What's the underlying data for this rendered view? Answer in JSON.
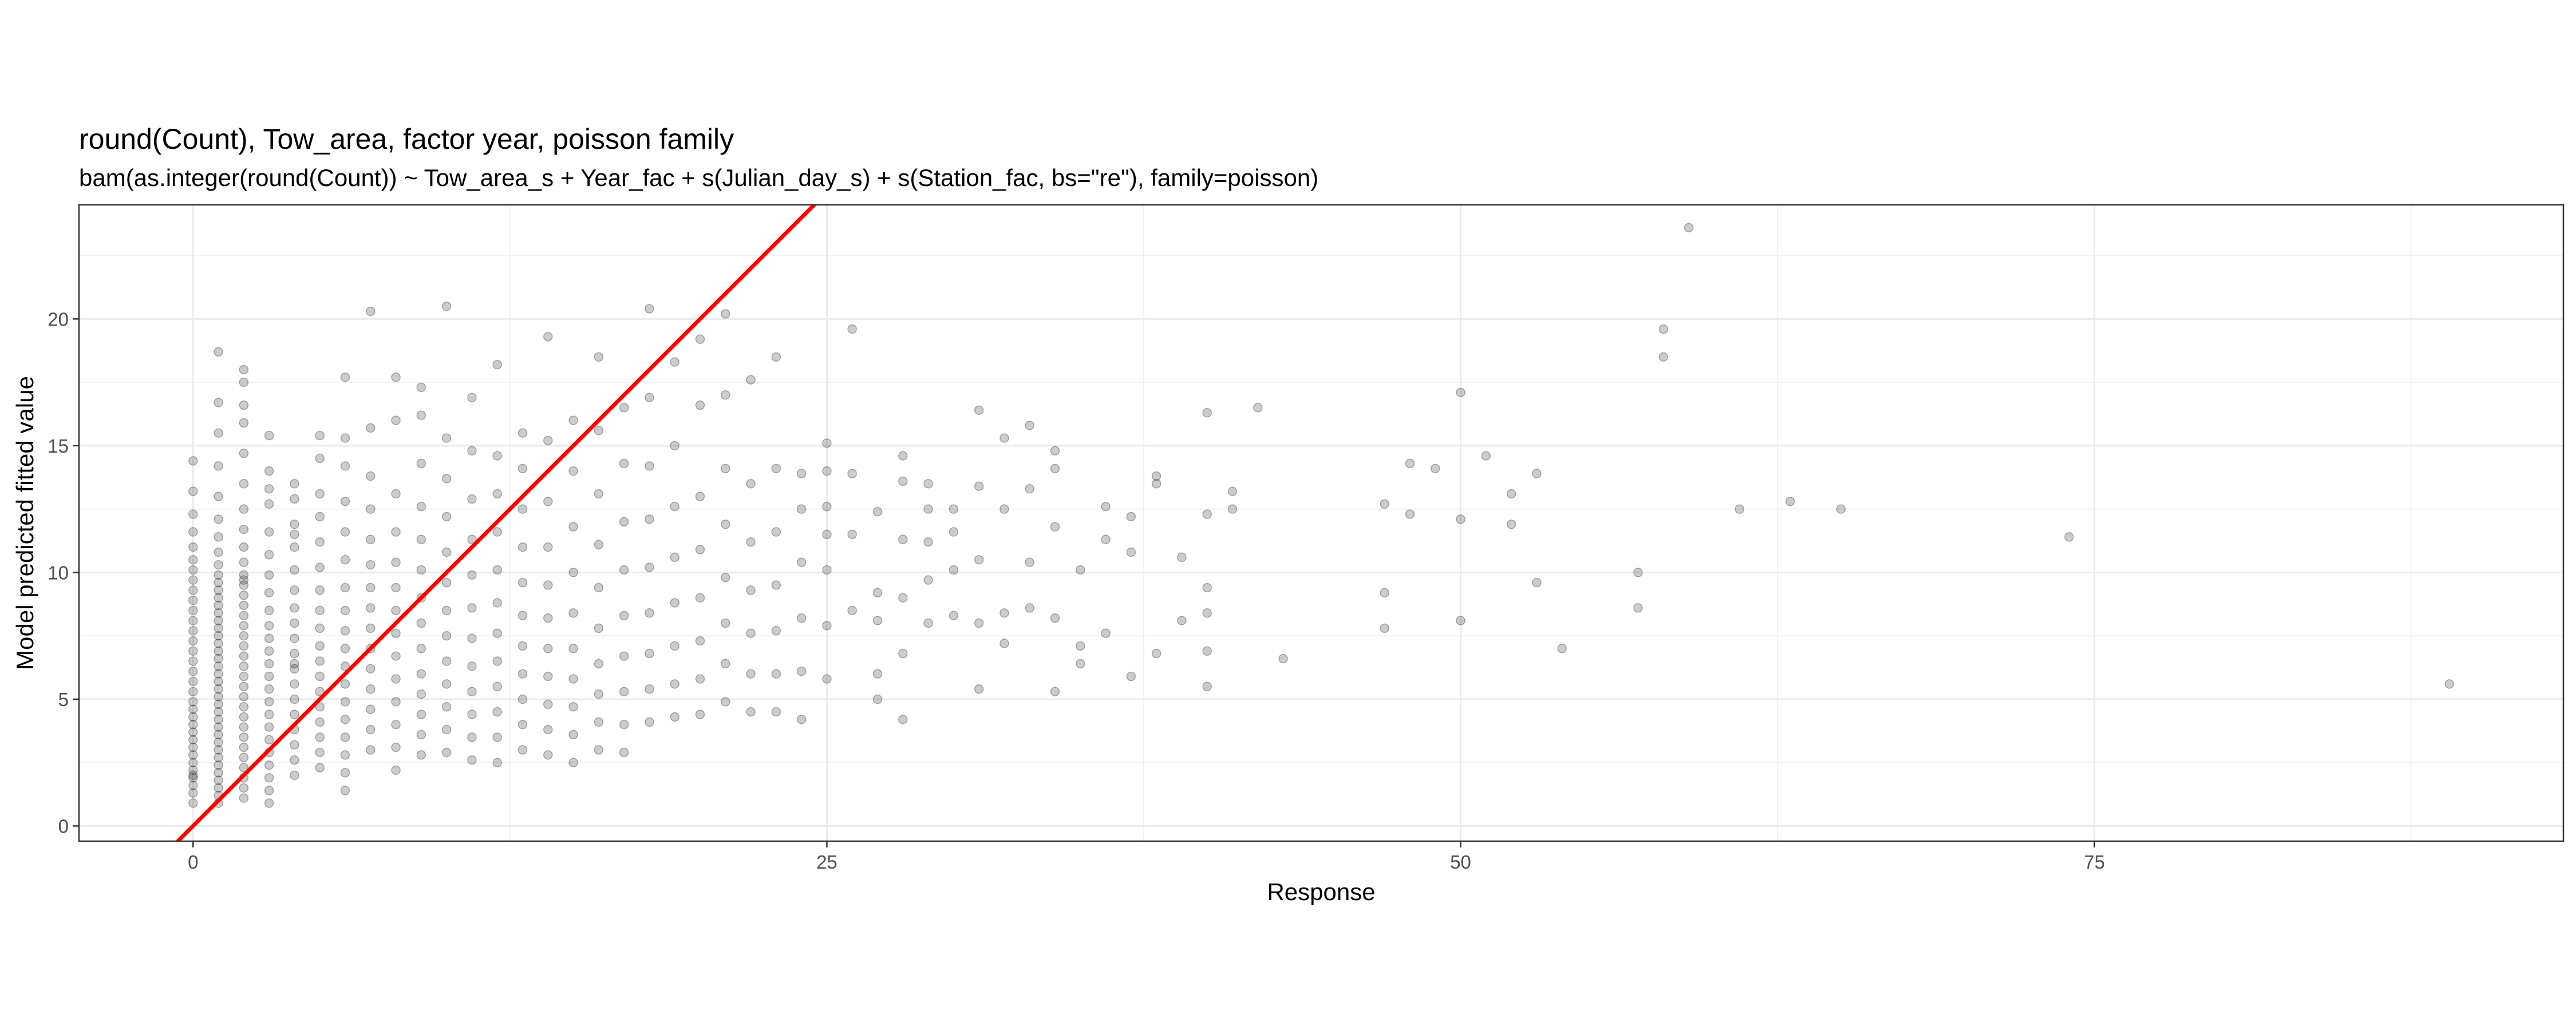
{
  "chart_data": {
    "type": "scatter",
    "title": "round(Count), Tow_area, factor year, poisson family",
    "subtitle": "bam(as.integer(round(Count)) ~ Tow_area_s + Year_fac + s(Julian_day_s) + s(Station_fac, bs=\"re\"), family=poisson)",
    "xlabel": "Response",
    "ylabel": "Model predicted fitted value",
    "xlim": [
      -4.5,
      93.5
    ],
    "ylim": [
      -0.6,
      24.5
    ],
    "x_ticks": [
      0,
      25,
      50,
      75
    ],
    "x_tick_labels": [
      "0",
      "25",
      "50",
      "75"
    ],
    "y_ticks": [
      0,
      5,
      10,
      15,
      20
    ],
    "y_tick_labels": [
      "0",
      "5",
      "10",
      "15",
      "20"
    ],
    "grid": true,
    "legend": "none",
    "reference_line": {
      "type": "identity",
      "slope": 1,
      "intercept": 0,
      "color": "#ff0000"
    },
    "point_color": "#000000",
    "point_opacity": 0.2,
    "series": [
      {
        "x": [
          0,
          0,
          0,
          0,
          0,
          0,
          0,
          0,
          0,
          0,
          0,
          0,
          0,
          0,
          0,
          0,
          0,
          0,
          0,
          0,
          0,
          0,
          0,
          0,
          0,
          0,
          0,
          0,
          0,
          0,
          0,
          0,
          0,
          0,
          1,
          1,
          1,
          1,
          1,
          1,
          1,
          1,
          1,
          1,
          1,
          1,
          1,
          1,
          1,
          1,
          1,
          1,
          1,
          1,
          1,
          1,
          1,
          1,
          1,
          1,
          1,
          1,
          1,
          1,
          1,
          1,
          1,
          1,
          1,
          1,
          1,
          1,
          1,
          1,
          2,
          2,
          2,
          2,
          2,
          2,
          2,
          2,
          2,
          2,
          2,
          2,
          2,
          2,
          2,
          2,
          2,
          2,
          2,
          2,
          2,
          2,
          2,
          2,
          2,
          2,
          2,
          2,
          2,
          2,
          2,
          2,
          2,
          2,
          3,
          3,
          3,
          3,
          3,
          3,
          3,
          3,
          3,
          3,
          3,
          3,
          3,
          3,
          3,
          3,
          3,
          3,
          3,
          3,
          3,
          3,
          3,
          3,
          4,
          4,
          4,
          4,
          4,
          4,
          4,
          4,
          4,
          4,
          4,
          4,
          4,
          4,
          4,
          4,
          4,
          4,
          4,
          4,
          5,
          5,
          5,
          5,
          5,
          5,
          5,
          5,
          5,
          5,
          5,
          5,
          5,
          5,
          5,
          5,
          5,
          5,
          6,
          6,
          6,
          6,
          6,
          6,
          6,
          6,
          6,
          6,
          6,
          6,
          6,
          6,
          6,
          6,
          6,
          6,
          7,
          7,
          7,
          7,
          7,
          7,
          7,
          7,
          7,
          7,
          7,
          7,
          7,
          7,
          7,
          8,
          8,
          8,
          8,
          8,
          8,
          8,
          8,
          8,
          8,
          8,
          8,
          8,
          8,
          9,
          9,
          9,
          9,
          9,
          9,
          9,
          9,
          9,
          9,
          9,
          9,
          9,
          9,
          10,
          10,
          10,
          10,
          10,
          10,
          10,
          10,
          10,
          10,
          10,
          10,
          10,
          11,
          11,
          11,
          11,
          11,
          11,
          11,
          11,
          11,
          11,
          11,
          11,
          12,
          12,
          12,
          12,
          12,
          12,
          12,
          12,
          12,
          12,
          12,
          12,
          13,
          13,
          13,
          13,
          13,
          13,
          13,
          13,
          13,
          13,
          13,
          14,
          14,
          14,
          14,
          14,
          14,
          14,
          14,
          14,
          14,
          14,
          15,
          15,
          15,
          15,
          15,
          15,
          15,
          15,
          15,
          15,
          16,
          16,
          16,
          16,
          16,
          16,
          16,
          16,
          16,
          16,
          17,
          17,
          17,
          17,
          17,
          17,
          17,
          17,
          17,
          18,
          18,
          18,
          18,
          18,
          18,
          18,
          18,
          18,
          19,
          19,
          19,
          19,
          19,
          19,
          19,
          19,
          20,
          20,
          20,
          20,
          20,
          20,
          20,
          20,
          21,
          21,
          21,
          21,
          21,
          21,
          21,
          21,
          22,
          22,
          22,
          22,
          22,
          22,
          22,
          23,
          23,
          23,
          23,
          23,
          23,
          23,
          24,
          24,
          24,
          24,
          24,
          24,
          25,
          25,
          25,
          25,
          25,
          25,
          25,
          26,
          26,
          26,
          26,
          27,
          27,
          27,
          27,
          27,
          28,
          28,
          28,
          28,
          28,
          28,
          29,
          29,
          29,
          29,
          29,
          30,
          30,
          30,
          30,
          31,
          31,
          31,
          31,
          31,
          32,
          32,
          32,
          32,
          33,
          33,
          33,
          33,
          34,
          34,
          34,
          34,
          34,
          35,
          35,
          35,
          36,
          36,
          36,
          37,
          37,
          37,
          38,
          38,
          38,
          39,
          39,
          40,
          40,
          40,
          40,
          40,
          40,
          41,
          41,
          42,
          43,
          47,
          47,
          47,
          48,
          48,
          49,
          50,
          50,
          50,
          51,
          52,
          52,
          53,
          53,
          54,
          57,
          57,
          58,
          58,
          59,
          61,
          63,
          65,
          74,
          89
        ],
        "y": [
          0.9,
          1.3,
          1.6,
          1.9,
          2.2,
          2.5,
          2.8,
          3.1,
          3.4,
          3.7,
          4.0,
          4.3,
          4.6,
          4.9,
          5.3,
          5.7,
          6.1,
          6.5,
          6.9,
          7.3,
          7.7,
          8.1,
          8.5,
          8.9,
          9.3,
          9.7,
          10.1,
          10.5,
          11.0,
          11.6,
          12.3,
          13.2,
          14.4,
          2.0,
          0.9,
          1.2,
          1.5,
          1.8,
          2.1,
          2.4,
          2.7,
          3.0,
          3.3,
          3.6,
          3.9,
          4.2,
          4.5,
          4.8,
          5.1,
          5.4,
          5.7,
          6.0,
          6.3,
          6.6,
          6.9,
          7.2,
          7.5,
          7.8,
          8.1,
          8.4,
          8.7,
          9.0,
          9.3,
          9.6,
          9.9,
          10.3,
          10.8,
          11.4,
          12.1,
          13.0,
          14.2,
          15.5,
          16.7,
          18.7,
          1.1,
          1.5,
          1.9,
          2.3,
          2.7,
          3.1,
          3.5,
          3.9,
          4.3,
          4.7,
          5.1,
          5.5,
          5.9,
          6.3,
          6.7,
          7.1,
          7.5,
          7.9,
          8.3,
          8.7,
          9.1,
          9.5,
          9.9,
          10.4,
          11.0,
          11.7,
          12.5,
          13.5,
          14.7,
          16.6,
          17.5,
          15.9,
          18.0,
          9.7,
          0.9,
          1.4,
          1.9,
          2.4,
          2.9,
          3.4,
          3.9,
          4.4,
          4.9,
          5.4,
          5.9,
          6.4,
          6.9,
          7.4,
          7.9,
          8.5,
          9.2,
          9.9,
          10.7,
          11.6,
          12.7,
          14.0,
          15.4,
          13.3,
          2.0,
          2.6,
          3.2,
          3.8,
          4.4,
          5.0,
          5.6,
          6.2,
          6.8,
          7.4,
          8.0,
          8.6,
          9.3,
          10.1,
          11.0,
          11.9,
          12.9,
          13.5,
          11.5,
          6.4,
          2.3,
          2.9,
          3.5,
          4.1,
          4.7,
          5.3,
          5.9,
          6.5,
          7.1,
          7.8,
          8.5,
          9.3,
          10.2,
          11.2,
          12.2,
          13.1,
          15.4,
          14.5,
          1.4,
          2.1,
          2.8,
          3.5,
          4.2,
          4.9,
          5.6,
          6.3,
          7.0,
          7.7,
          8.5,
          9.4,
          10.5,
          11.6,
          12.8,
          14.2,
          15.3,
          17.7,
          3.0,
          3.8,
          4.6,
          5.4,
          6.2,
          7.0,
          7.8,
          8.6,
          9.4,
          10.3,
          11.3,
          12.5,
          13.8,
          15.7,
          20.3,
          2.2,
          3.1,
          4.0,
          4.9,
          5.8,
          6.7,
          7.6,
          8.5,
          9.4,
          10.4,
          11.6,
          13.1,
          16.0,
          17.7,
          2.8,
          3.6,
          4.4,
          5.2,
          6.0,
          7.0,
          8.0,
          9.0,
          10.1,
          11.3,
          12.6,
          14.3,
          16.2,
          17.3,
          2.9,
          3.8,
          4.7,
          5.6,
          6.5,
          7.5,
          8.5,
          9.6,
          10.8,
          12.2,
          13.7,
          15.3,
          20.5,
          2.6,
          3.5,
          4.4,
          5.3,
          6.3,
          7.4,
          8.6,
          9.9,
          11.3,
          12.9,
          14.8,
          16.9,
          2.5,
          3.5,
          4.5,
          5.5,
          6.5,
          7.6,
          8.8,
          10.1,
          11.6,
          13.1,
          14.6,
          18.2,
          3.0,
          4.0,
          5.0,
          6.0,
          7.1,
          8.3,
          9.6,
          11.0,
          12.5,
          14.1,
          15.5,
          2.8,
          3.8,
          4.8,
          5.9,
          7.0,
          8.2,
          9.5,
          11.0,
          12.8,
          15.2,
          19.3,
          2.5,
          3.6,
          4.7,
          5.8,
          7.0,
          8.4,
          10.0,
          11.8,
          14.0,
          16.0,
          3.0,
          4.1,
          5.2,
          6.4,
          7.8,
          9.4,
          11.1,
          13.1,
          15.6,
          18.5,
          2.9,
          4.0,
          5.3,
          6.7,
          8.3,
          10.1,
          12.0,
          14.3,
          16.5,
          4.1,
          5.4,
          6.8,
          8.4,
          10.2,
          12.1,
          14.2,
          16.9,
          20.4,
          4.3,
          5.6,
          7.1,
          8.8,
          10.6,
          12.6,
          15.0,
          18.3,
          4.4,
          5.8,
          7.3,
          9.0,
          10.9,
          13.0,
          16.6,
          19.2,
          4.9,
          6.4,
          8.0,
          9.8,
          11.9,
          14.1,
          17.0,
          20.2,
          4.5,
          6.0,
          7.6,
          9.3,
          11.2,
          13.5,
          17.6,
          4.5,
          6.0,
          7.7,
          9.5,
          11.6,
          14.1,
          18.5,
          4.2,
          6.1,
          8.2,
          10.4,
          12.5,
          13.9,
          5.8,
          7.9,
          10.1,
          12.6,
          14.0,
          15.1,
          11.5,
          8.5,
          11.5,
          13.9,
          19.6,
          5.0,
          6.0,
          8.1,
          9.2,
          12.4,
          4.2,
          6.8,
          9.0,
          11.3,
          13.6,
          14.6,
          8.0,
          9.7,
          11.2,
          12.5,
          13.5,
          8.3,
          10.1,
          11.6,
          12.5,
          5.4,
          8.0,
          10.5,
          13.4,
          16.4,
          7.2,
          8.4,
          12.5,
          15.3,
          8.6,
          10.4,
          13.3,
          15.8,
          5.3,
          8.2,
          11.8,
          14.1,
          14.8,
          6.4,
          7.1,
          10.1,
          7.6,
          11.3,
          12.6,
          5.9,
          10.8,
          12.2,
          6.8,
          13.5,
          13.8,
          8.1,
          10.6,
          5.5,
          6.9,
          8.4,
          9.4,
          12.3,
          16.3,
          12.5,
          13.2,
          16.5,
          6.6,
          7.8,
          9.2,
          12.7,
          12.3,
          14.3,
          14.1,
          8.1,
          12.1,
          17.1,
          14.6,
          11.9,
          13.1,
          9.6,
          13.9,
          7.0,
          8.6,
          10.0,
          18.5,
          19.6,
          23.6,
          12.5,
          12.8,
          12.5,
          11.4,
          5.6
        ]
      }
    ]
  }
}
